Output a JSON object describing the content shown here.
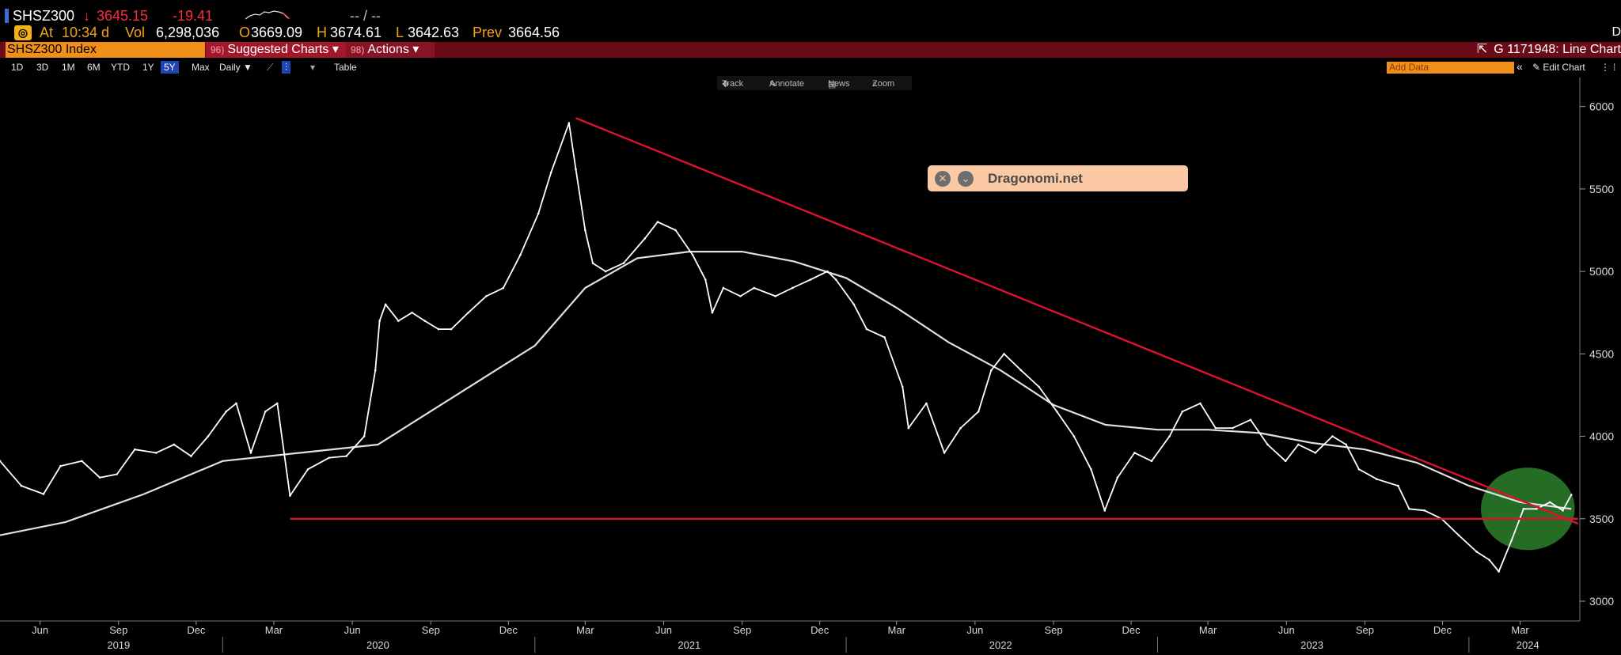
{
  "header": {
    "symbol": "SHSZ300",
    "arrow": "↓",
    "last": "3645.15",
    "change": "-19.41",
    "dash": "-- / --",
    "at_label": "At",
    "time": "10:34 d",
    "vol_label": "Vol",
    "vol": "6,298,036",
    "open_label": "O",
    "open": "3669.09",
    "high_label": "H",
    "high": "3674.61",
    "low_label": "L",
    "low": "3642.63",
    "prev_label": "Prev",
    "prev": "3664.56",
    "right_mark": "D"
  },
  "command_bar": {
    "security": "SHSZ300 Index",
    "suggested_charts": "Suggested Charts ▾",
    "actions": "Actions ▾",
    "chart_id": "G 1171948: Line Chart"
  },
  "toolbar": {
    "ranges": [
      "1D",
      "3D",
      "1M",
      "6M",
      "YTD",
      "1Y",
      "5Y",
      "Max"
    ],
    "selected_range": "5Y",
    "frequency": "Daily ▼",
    "table": "Table",
    "add_data": "Add Data",
    "collapse": "«",
    "edit_chart": "Edit Chart"
  },
  "tools": {
    "track": "Track",
    "annotate": "Annotate",
    "news": "News",
    "zoom": "Zoom"
  },
  "watermark": {
    "close_icon": "✕",
    "menu_icon": "⌄",
    "text": "Dragonomi.net"
  },
  "colors": {
    "price": "#ffffff",
    "moving_average": "#e0e0e0",
    "trendline": "#e0102e",
    "support": "#e0102e",
    "highlight_fill": "#2f8a2f",
    "accent_orange": "#f08f1a",
    "bar_red": "#6b0b17"
  },
  "chart_data": {
    "type": "line",
    "title": "",
    "xlabel": "",
    "ylabel": "",
    "ylim": [
      2880,
      6080
    ],
    "yticks": [
      3000,
      3500,
      4000,
      4500,
      5000,
      5500,
      6000
    ],
    "xlim": [
      "2019-04-15",
      "2024-05-10"
    ],
    "x_month_ticks": [
      {
        "date": "2019-06-01",
        "label": "Jun"
      },
      {
        "date": "2019-09-01",
        "label": "Sep"
      },
      {
        "date": "2019-12-01",
        "label": "Dec"
      },
      {
        "date": "2020-03-01",
        "label": "Mar"
      },
      {
        "date": "2020-06-01",
        "label": "Jun"
      },
      {
        "date": "2020-09-01",
        "label": "Sep"
      },
      {
        "date": "2020-12-01",
        "label": "Dec"
      },
      {
        "date": "2021-03-01",
        "label": "Mar"
      },
      {
        "date": "2021-06-01",
        "label": "Jun"
      },
      {
        "date": "2021-09-01",
        "label": "Sep"
      },
      {
        "date": "2021-12-01",
        "label": "Dec"
      },
      {
        "date": "2022-03-01",
        "label": "Mar"
      },
      {
        "date": "2022-06-01",
        "label": "Jun"
      },
      {
        "date": "2022-09-01",
        "label": "Sep"
      },
      {
        "date": "2022-12-01",
        "label": "Dec"
      },
      {
        "date": "2023-03-01",
        "label": "Mar"
      },
      {
        "date": "2023-06-01",
        "label": "Jun"
      },
      {
        "date": "2023-09-01",
        "label": "Sep"
      },
      {
        "date": "2023-12-01",
        "label": "Dec"
      },
      {
        "date": "2024-03-01",
        "label": "Mar"
      }
    ],
    "x_year_labels": [
      {
        "year": "2019",
        "mid": "2019-09-01"
      },
      {
        "year": "2020",
        "mid": "2020-07-01"
      },
      {
        "year": "2021",
        "mid": "2021-07-01"
      },
      {
        "year": "2022",
        "mid": "2022-07-01"
      },
      {
        "year": "2023",
        "mid": "2023-07-01"
      },
      {
        "year": "2024",
        "mid": "2024-03-10"
      }
    ],
    "x_year_boundaries": [
      "2020-01-01",
      "2021-01-01",
      "2022-01-01",
      "2023-01-01",
      "2024-01-01"
    ],
    "series": [
      {
        "kind": "price",
        "x": [
          "2019-04-15",
          "2019-05-10",
          "2019-06-05",
          "2019-06-25",
          "2019-07-20",
          "2019-08-10",
          "2019-08-30",
          "2019-09-20",
          "2019-10-15",
          "2019-11-05",
          "2019-11-25",
          "2019-12-15",
          "2020-01-05",
          "2020-01-17",
          "2020-02-03",
          "2020-02-20",
          "2020-03-05",
          "2020-03-20",
          "2020-04-10",
          "2020-05-05",
          "2020-05-25",
          "2020-06-15",
          "2020-06-28",
          "2020-07-03",
          "2020-07-10",
          "2020-07-25",
          "2020-08-10",
          "2020-08-25",
          "2020-09-10",
          "2020-09-25",
          "2020-10-15",
          "2020-11-05",
          "2020-11-25",
          "2020-12-15",
          "2021-01-05",
          "2021-01-20",
          "2021-02-10",
          "2021-02-18",
          "2021-03-01",
          "2021-03-10",
          "2021-03-25",
          "2021-04-15",
          "2021-05-10",
          "2021-05-25",
          "2021-06-15",
          "2021-07-05",
          "2021-07-20",
          "2021-07-28",
          "2021-08-10",
          "2021-08-30",
          "2021-09-15",
          "2021-10-10",
          "2021-10-30",
          "2021-11-20",
          "2021-12-10",
          "2021-12-20",
          "2022-01-10",
          "2022-01-25",
          "2022-02-15",
          "2022-03-08",
          "2022-03-15",
          "2022-04-05",
          "2022-04-26",
          "2022-05-15",
          "2022-06-05",
          "2022-06-20",
          "2022-07-05",
          "2022-07-25",
          "2022-08-15",
          "2022-09-05",
          "2022-09-25",
          "2022-10-15",
          "2022-10-31",
          "2022-11-15",
          "2022-12-05",
          "2022-12-25",
          "2023-01-15",
          "2023-01-30",
          "2023-02-20",
          "2023-03-10",
          "2023-03-30",
          "2023-04-20",
          "2023-05-10",
          "2023-05-31",
          "2023-06-15",
          "2023-07-05",
          "2023-07-25",
          "2023-08-10",
          "2023-08-25",
          "2023-09-15",
          "2023-10-10",
          "2023-10-23",
          "2023-11-10",
          "2023-11-30",
          "2023-12-20",
          "2024-01-10",
          "2024-01-25",
          "2024-02-05",
          "2024-02-20",
          "2024-03-05",
          "2024-03-20",
          "2024-04-05",
          "2024-04-20",
          "2024-04-30"
        ],
        "y": [
          3850,
          3700,
          3650,
          3820,
          3850,
          3750,
          3770,
          3920,
          3900,
          3950,
          3880,
          4000,
          4150,
          4200,
          3900,
          4150,
          4200,
          3640,
          3800,
          3870,
          3880,
          4000,
          4400,
          4700,
          4800,
          4700,
          4750,
          4700,
          4650,
          4650,
          4750,
          4850,
          4900,
          5100,
          5350,
          5600,
          5900,
          5620,
          5250,
          5050,
          5000,
          5050,
          5200,
          5300,
          5250,
          5100,
          4950,
          4750,
          4900,
          4850,
          4900,
          4850,
          4900,
          4950,
          5000,
          4950,
          4800,
          4650,
          4600,
          4300,
          4050,
          4200,
          3900,
          4050,
          4150,
          4400,
          4500,
          4400,
          4300,
          4150,
          4000,
          3800,
          3550,
          3750,
          3900,
          3850,
          4000,
          4150,
          4200,
          4050,
          4050,
          4100,
          3950,
          3850,
          3950,
          3900,
          4000,
          3950,
          3800,
          3740,
          3700,
          3560,
          3550,
          3500,
          3400,
          3300,
          3250,
          3180,
          3370,
          3560,
          3560,
          3600,
          3550,
          3645
        ]
      },
      {
        "kind": "moving_average",
        "x": [
          "2019-04-15",
          "2019-07-01",
          "2019-10-01",
          "2020-01-01",
          "2020-04-01",
          "2020-07-01",
          "2020-10-01",
          "2021-01-01",
          "2021-03-01",
          "2021-05-01",
          "2021-07-01",
          "2021-09-01",
          "2021-11-01",
          "2022-01-01",
          "2022-03-01",
          "2022-05-01",
          "2022-07-01",
          "2022-09-01",
          "2022-11-01",
          "2023-01-01",
          "2023-03-01",
          "2023-05-01",
          "2023-07-01",
          "2023-09-01",
          "2023-11-01",
          "2024-01-01",
          "2024-03-01",
          "2024-04-30"
        ],
        "y": [
          3400,
          3480,
          3650,
          3850,
          3900,
          3950,
          4250,
          4550,
          4900,
          5080,
          5120,
          5120,
          5060,
          4960,
          4780,
          4570,
          4400,
          4190,
          4070,
          4040,
          4040,
          4020,
          3960,
          3920,
          3840,
          3700,
          3600,
          3560
        ]
      }
    ],
    "trendlines": [
      {
        "kind": "resistance",
        "from": {
          "x": "2021-02-18",
          "y": 5930
        },
        "to": {
          "x": "2024-05-08",
          "y": 3470
        }
      },
      {
        "kind": "support",
        "from": {
          "x": "2020-03-20",
          "y": 3500
        },
        "to": {
          "x": "2024-05-08",
          "y": 3500
        }
      }
    ],
    "highlight": {
      "shape": "ellipse",
      "center": {
        "x": "2024-03-10",
        "y": 3560
      },
      "rx_days": 55,
      "ry": 250
    },
    "grid": false,
    "legend": "none"
  }
}
